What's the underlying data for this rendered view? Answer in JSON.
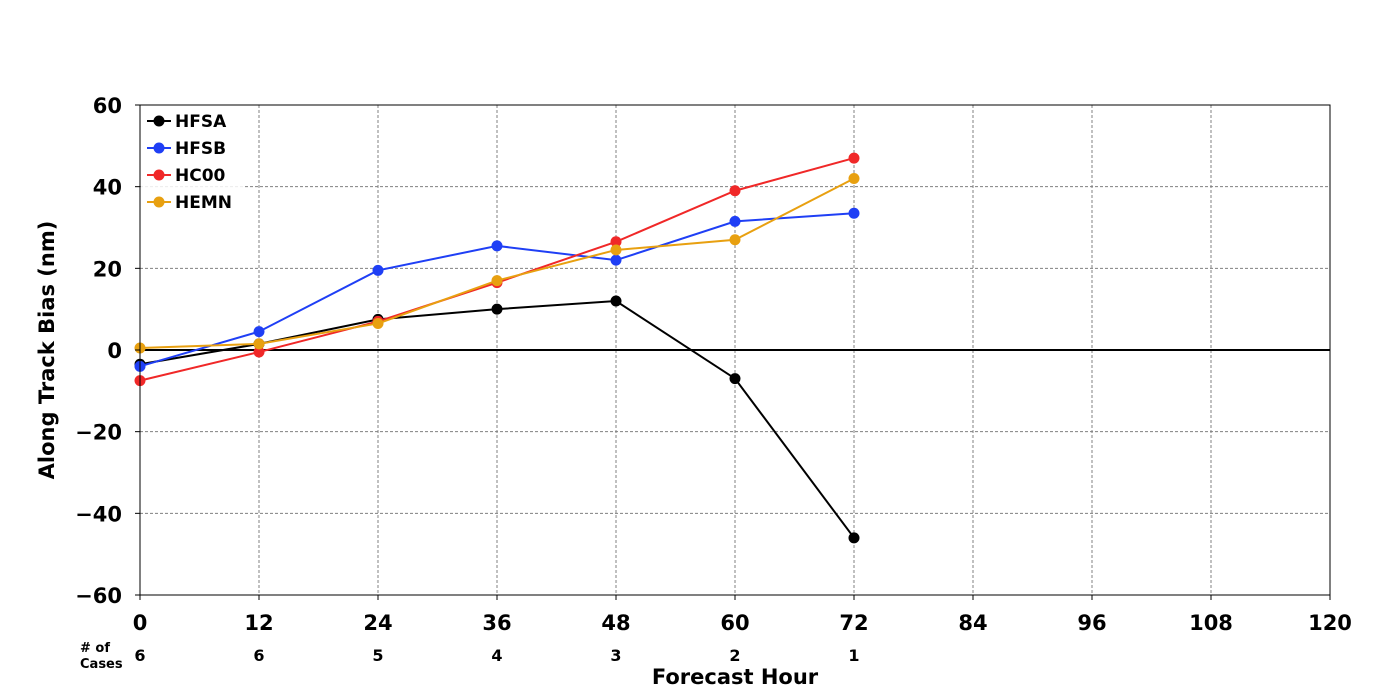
{
  "chart_data": {
    "type": "line",
    "xlabel": "Forecast Hour",
    "ylabel": "Along Track Bias (nm)",
    "xlim": [
      0,
      120
    ],
    "ylim": [
      -60,
      60
    ],
    "x_ticks": [
      0,
      12,
      24,
      36,
      48,
      60,
      72,
      84,
      96,
      108,
      120
    ],
    "y_ticks": [
      60,
      40,
      20,
      0,
      -20,
      -40,
      -60
    ],
    "y_tick_labels": [
      "60",
      "40",
      "20",
      "0",
      "−20",
      "−40",
      "−60"
    ],
    "grid": true,
    "legend_position": "top-left",
    "cases_label_line1": "# of",
    "cases_label_line2": "Cases",
    "cases": [
      {
        "x": 0,
        "count": "6"
      },
      {
        "x": 12,
        "count": "6"
      },
      {
        "x": 24,
        "count": "5"
      },
      {
        "x": 36,
        "count": "4"
      },
      {
        "x": 48,
        "count": "3"
      },
      {
        "x": 60,
        "count": "2"
      },
      {
        "x": 72,
        "count": "1"
      }
    ],
    "x": [
      0,
      12,
      24,
      36,
      48,
      60,
      72
    ],
    "series": [
      {
        "name": "HFSA",
        "color": "#000000",
        "values": [
          -3.5,
          1.5,
          7.5,
          10,
          12,
          -7,
          -46
        ]
      },
      {
        "name": "HFSB",
        "color": "#1f3ff5",
        "values": [
          -4,
          4.5,
          19.5,
          25.5,
          22,
          31.5,
          33.5
        ]
      },
      {
        "name": "HC00",
        "color": "#f02828",
        "values": [
          -7.5,
          -0.5,
          7,
          16.5,
          26.5,
          39,
          47
        ]
      },
      {
        "name": "HEMN",
        "color": "#e8a010",
        "values": [
          0.5,
          1.5,
          6.5,
          17,
          24.5,
          27,
          42
        ]
      }
    ]
  }
}
